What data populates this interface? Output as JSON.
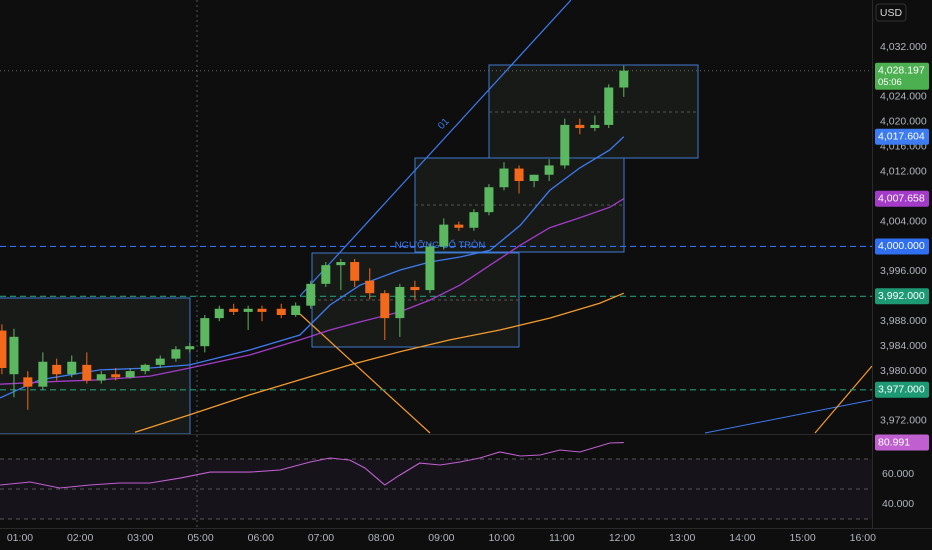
{
  "chart_data": {
    "type": "candlestick",
    "currency": "USD",
    "up_color": "#5cb860",
    "down_color": "#f2691b",
    "x": [
      0.7,
      0.9,
      1.13,
      1.38,
      1.61,
      1.86,
      2.11,
      2.35,
      2.59,
      2.83,
      3.08,
      3.33,
      3.59,
      3.82,
      4.07,
      4.31,
      4.55,
      4.79,
      5.02,
      5.34,
      5.58,
      5.83,
      6.08,
      6.33,
      6.56,
      6.81,
      7.06,
      7.31,
      7.56,
      7.81,
      8.04,
      8.29,
      8.54,
      8.79,
      9.04,
      9.29,
      9.54,
      9.79,
      10.05,
      10.3,
      10.55,
      10.78,
      11.03
    ],
    "open": [
      3986.5,
      3979.5,
      3979,
      3977.5,
      3981,
      3979.5,
      3981,
      3978.5,
      3979.5,
      3979,
      3980,
      3981,
      3982,
      3983.5,
      3984,
      3988.5,
      3990,
      3989.5,
      3990,
      3990,
      3989,
      3990.5,
      3994,
      3997,
      3997.5,
      3994.5,
      3992.5,
      3988.5,
      3993.5,
      3993,
      4000,
      4003.5,
      4003,
      4005.5,
      4009.5,
      4012.5,
      4010.5,
      4011.5,
      4013,
      4019.5,
      4019,
      4019.5,
      4025.5
    ],
    "high": [
      3987.5,
      3986.8,
      3980,
      3983,
      3982,
      3982.5,
      3983,
      3980,
      3980.5,
      3980.5,
      3981.2,
      3982.5,
      3984,
      3984.5,
      3989,
      3990.5,
      3990.8,
      3990.5,
      3990.5,
      3990.8,
      3991,
      3994.5,
      3997.5,
      3998,
      3998,
      3996.5,
      3993,
      3994,
      3994.5,
      4000.5,
      4004.5,
      4004,
      4006,
      4010,
      4013.5,
      4013,
      4011.5,
      4014,
      4020.5,
      4020.5,
      4021,
      4026,
      4029
    ],
    "low": [
      3979.5,
      3975.8,
      3973.8,
      3977,
      3978.5,
      3979,
      3978,
      3978,
      3978.5,
      3978.8,
      3979.5,
      3980.5,
      3981.5,
      3983,
      3983,
      3988,
      3989,
      3986.6,
      3988,
      3988.5,
      3988.7,
      3990,
      3993.5,
      3993,
      3993.5,
      3991.5,
      3985,
      3985.5,
      3991.5,
      3992.5,
      3999.5,
      4002.5,
      4002.5,
      4005,
      4009,
      4008.5,
      4009.5,
      4010.5,
      4012.5,
      4018,
      4018.5,
      4019,
      4024
    ],
    "close": [
      3980.5,
      3985.5,
      3977.5,
      3981.5,
      3979.5,
      3981.5,
      3978.5,
      3979.5,
      3979,
      3980,
      3981,
      3982,
      3983.5,
      3984,
      3988.5,
      3990,
      3989.5,
      3990,
      3989.5,
      3989,
      3990.5,
      3994,
      3997,
      3997.5,
      3994.5,
      3992.5,
      3988.5,
      3993.5,
      3993,
      4000,
      4003.5,
      4003,
      4005.5,
      4009.5,
      4012.5,
      4010.5,
      4011.5,
      4013,
      4019.5,
      4019,
      4019.5,
      4025.5,
      4028.197
    ],
    "xlim": [
      0.668,
      15.153
    ],
    "xticks": [
      {
        "value": 1,
        "label": "01:00"
      },
      {
        "value": 2,
        "label": "02:00"
      },
      {
        "value": 3,
        "label": "03:00"
      },
      {
        "value": 4,
        "label": "05:00"
      },
      {
        "value": 5,
        "label": "06:00"
      },
      {
        "value": 6,
        "label": "07:00"
      },
      {
        "value": 7,
        "label": "08:00"
      },
      {
        "value": 8,
        "label": "09:00"
      },
      {
        "value": 9,
        "label": "10:00"
      },
      {
        "value": 10,
        "label": "11:00"
      },
      {
        "value": 11,
        "label": "12:00"
      },
      {
        "value": 12,
        "label": "13:00"
      },
      {
        "value": 13,
        "label": "14:00"
      },
      {
        "value": 14,
        "label": "15:00"
      },
      {
        "value": 15,
        "label": "16:00"
      }
    ],
    "ylim": [
      3970.23,
      4039.54
    ],
    "yticks": [
      {
        "value": 4032,
        "label": "4,032.000"
      },
      {
        "value": 4024,
        "label": "4,024.000"
      },
      {
        "value": 4020,
        "label": "4,020.000"
      },
      {
        "value": 4016,
        "label": "4,016.000"
      },
      {
        "value": 4012,
        "label": "4,012.000"
      },
      {
        "value": 4004,
        "label": "4,004.000"
      },
      {
        "value": 3996,
        "label": "3,996.000"
      },
      {
        "value": 3988,
        "label": "3,988.000"
      },
      {
        "value": 3984,
        "label": "3,984.000"
      },
      {
        "value": 3980,
        "label": "3,980.000"
      },
      {
        "value": 3972,
        "label": "3,972.000"
      }
    ],
    "overlays": [
      {
        "color": "#3d7bf0",
        "last_label": "4,017.604",
        "x": [
          0.67,
          1.33,
          2.33,
          3.16,
          3.82,
          4.82,
          5.65,
          6.15,
          6.65,
          7.31,
          7.81,
          8.31,
          8.81,
          9.31,
          9.8,
          10.3,
          10.8,
          11.03
        ],
        "values": [
          3975.7,
          3978.6,
          3980.2,
          3980.5,
          3981,
          3983.4,
          3985.8,
          3990.6,
          3993.8,
          3996.2,
          3997.5,
          3998.3,
          3999.4,
          4003.4,
          4009,
          4012.6,
          4015.5,
          4017.604
        ]
      },
      {
        "color": "#a23cc8",
        "last_label": "4,007.658",
        "x": [
          0.67,
          1.5,
          2.33,
          3.16,
          3.82,
          4.82,
          5.65,
          6.15,
          6.65,
          7.31,
          7.81,
          8.31,
          8.81,
          9.31,
          9.8,
          10.3,
          10.8,
          11.03
        ],
        "values": [
          3977.9,
          3978.3,
          3978.6,
          3979.2,
          3980.5,
          3982.6,
          3985,
          3986.6,
          3987.9,
          3989.5,
          3991.4,
          3993.8,
          3997,
          4000.2,
          4003,
          4004.6,
          4006.3,
          4007.658
        ]
      },
      {
        "color": "#f29a2e",
        "x": [
          2.91,
          3.82,
          4.82,
          5.65,
          6.48,
          7.31,
          8.14,
          8.97,
          9.8,
          10.63,
          11.03
        ],
        "values": [
          3970.2,
          3973,
          3976.2,
          3978.6,
          3981,
          3983.1,
          3985,
          3986.6,
          3988.5,
          3990.9,
          3992.5
        ]
      }
    ],
    "levels": [
      {
        "value": 4000,
        "label": "4,000.000",
        "color": "#2f6ff0"
      },
      {
        "value": 3992,
        "label": "3,992.000",
        "color": "#1d9a74"
      },
      {
        "value": 3977,
        "label": "3,977.000",
        "color": "#1d9a74"
      }
    ],
    "last_price": {
      "value": 4028.197,
      "label": "4,028.197",
      "countdown": "05:06",
      "color": "#4caf50"
    },
    "annotations": {
      "trendline": "01",
      "level_note": "NGƯỠNG SỐ TRÒN"
    },
    "rsi": {
      "color": "#c060d0",
      "ylim": [
        24,
        84.7
      ],
      "yticks": [
        {
          "value": 60,
          "label": "60.000"
        },
        {
          "value": 40,
          "label": "40.000"
        }
      ],
      "bands": [
        70,
        50,
        30
      ],
      "last_label": "80.991",
      "x": [
        0.67,
        1.17,
        1.66,
        2.16,
        2.66,
        3.16,
        3.66,
        4.16,
        4.82,
        5.32,
        5.82,
        6.15,
        6.48,
        6.73,
        7.06,
        7.31,
        7.64,
        7.98,
        8.31,
        8.64,
        8.97,
        9.31,
        9.64,
        9.97,
        10.3,
        10.8,
        11.03
      ],
      "values": [
        52.7,
        54.7,
        50.7,
        52.7,
        54,
        54,
        57.3,
        61.3,
        61.3,
        62.7,
        68,
        70.7,
        69.3,
        64,
        52.7,
        59.3,
        67.3,
        66,
        68,
        70.7,
        74.7,
        72,
        72.7,
        76,
        74.7,
        80.7,
        80.991
      ]
    }
  }
}
